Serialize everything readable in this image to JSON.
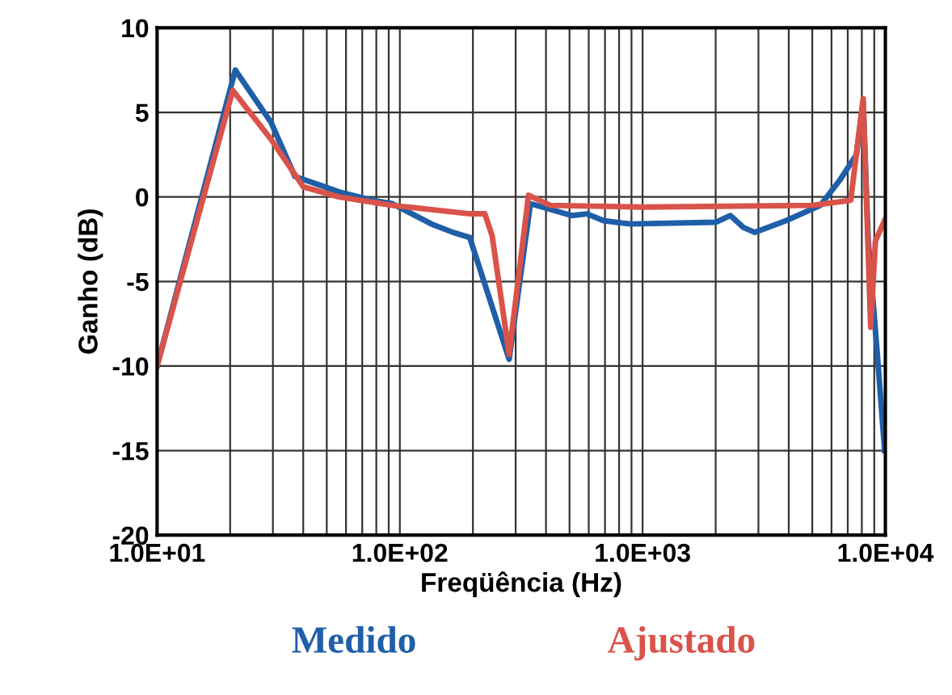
{
  "chart_data": {
    "type": "line",
    "xlabel": "Freqüência (Hz)",
    "ylabel": "Ganho (dB)",
    "log": "x",
    "grid": true,
    "legend": "bottom",
    "xlim": [
      10,
      10000
    ],
    "xticks": [
      {
        "value": 10,
        "label": "1.0E+01"
      },
      {
        "value": 100,
        "label": "1.0E+02"
      },
      {
        "value": 1000,
        "label": "1.0E+03"
      },
      {
        "value": 10000,
        "label": "1.0E+04"
      }
    ],
    "ylim": [
      -20,
      10
    ],
    "yticks": [
      -20,
      -15,
      -10,
      -5,
      0,
      5,
      10
    ],
    "series": [
      {
        "name": "Medido",
        "color": "#1f5fa8",
        "x": [
          10,
          21,
          29.5,
          37,
          49,
          56,
          77,
          93,
          135,
          166,
          194,
          282,
          345,
          510,
          590,
          690,
          890,
          2000,
          2300,
          2600,
          2900,
          3900,
          5400,
          6500,
          7600,
          8100,
          8500,
          9300,
          9930
        ],
        "values": [
          -10,
          7.5,
          4.4,
          1.2,
          0.6,
          0.3,
          -0.2,
          -0.4,
          -1.6,
          -2.1,
          -2.4,
          -9.6,
          -0.4,
          -1.1,
          -1.0,
          -1.4,
          -1.6,
          -1.5,
          -1.1,
          -1.8,
          -2.1,
          -1.4,
          -0.5,
          1.0,
          2.5,
          5.6,
          -2.6,
          -9.6,
          -15
        ]
      },
      {
        "name": "Ajustado",
        "color": "#d9534a",
        "x": [
          10,
          20.5,
          29.5,
          40,
          56,
          93,
          195,
          224,
          240,
          282,
          339,
          417,
          1000,
          5000,
          7200,
          8100,
          8700,
          9100,
          9930
        ],
        "values": [
          -10,
          6.3,
          3.4,
          0.6,
          0,
          -0.5,
          -1.0,
          -1.0,
          -2.3,
          -9.3,
          0.1,
          -0.5,
          -0.6,
          -0.5,
          -0.2,
          5.8,
          -7.7,
          -2.6,
          -1.4
        ]
      }
    ]
  }
}
